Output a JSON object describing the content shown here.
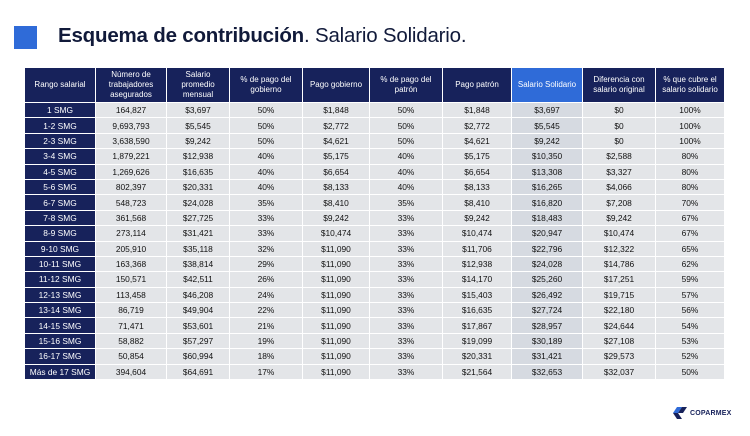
{
  "title": {
    "bold": "Esquema de contribución",
    "light": ". Salario Solidario."
  },
  "headers": [
    "Rango salarial",
    "Número de trabajadores asegurados",
    "Salario promedio mensual",
    "% de pago del gobierno",
    "Pago gobierno",
    "% de pago del patrón",
    "Pago patrón",
    "Salario Solidario",
    "Diferencia con salario original",
    "% que cubre el salario solidario"
  ],
  "rows": [
    [
      "1 SMG",
      "164,827",
      "$3,697",
      "50%",
      "$1,848",
      "50%",
      "$1,848",
      "$3,697",
      "$0",
      "100%"
    ],
    [
      "1-2 SMG",
      "9,693,793",
      "$5,545",
      "50%",
      "$2,772",
      "50%",
      "$2,772",
      "$5,545",
      "$0",
      "100%"
    ],
    [
      "2-3 SMG",
      "3,638,590",
      "$9,242",
      "50%",
      "$4,621",
      "50%",
      "$4,621",
      "$9,242",
      "$0",
      "100%"
    ],
    [
      "3-4 SMG",
      "1,879,221",
      "$12,938",
      "40%",
      "$5,175",
      "40%",
      "$5,175",
      "$10,350",
      "$2,588",
      "80%"
    ],
    [
      "4-5 SMG",
      "1,269,626",
      "$16,635",
      "40%",
      "$6,654",
      "40%",
      "$6,654",
      "$13,308",
      "$3,327",
      "80%"
    ],
    [
      "5-6 SMG",
      "802,397",
      "$20,331",
      "40%",
      "$8,133",
      "40%",
      "$8,133",
      "$16,265",
      "$4,066",
      "80%"
    ],
    [
      "6-7 SMG",
      "548,723",
      "$24,028",
      "35%",
      "$8,410",
      "35%",
      "$8,410",
      "$16,820",
      "$7,208",
      "70%"
    ],
    [
      "7-8 SMG",
      "361,568",
      "$27,725",
      "33%",
      "$9,242",
      "33%",
      "$9,242",
      "$18,483",
      "$9,242",
      "67%"
    ],
    [
      "8-9 SMG",
      "273,114",
      "$31,421",
      "33%",
      "$10,474",
      "33%",
      "$10,474",
      "$20,947",
      "$10,474",
      "67%"
    ],
    [
      "9-10 SMG",
      "205,910",
      "$35,118",
      "32%",
      "$11,090",
      "33%",
      "$11,706",
      "$22,796",
      "$12,322",
      "65%"
    ],
    [
      "10-11 SMG",
      "163,368",
      "$38,814",
      "29%",
      "$11,090",
      "33%",
      "$12,938",
      "$24,028",
      "$14,786",
      "62%"
    ],
    [
      "11-12 SMG",
      "150,571",
      "$42,511",
      "26%",
      "$11,090",
      "33%",
      "$14,170",
      "$25,260",
      "$17,251",
      "59%"
    ],
    [
      "12-13 SMG",
      "113,458",
      "$46,208",
      "24%",
      "$11,090",
      "33%",
      "$15,403",
      "$26,492",
      "$19,715",
      "57%"
    ],
    [
      "13-14 SMG",
      "86,719",
      "$49,904",
      "22%",
      "$11,090",
      "33%",
      "$16,635",
      "$27,724",
      "$22,180",
      "56%"
    ],
    [
      "14-15 SMG",
      "71,471",
      "$53,601",
      "21%",
      "$11,090",
      "33%",
      "$17,867",
      "$28,957",
      "$24,644",
      "54%"
    ],
    [
      "15-16 SMG",
      "58,882",
      "$57,297",
      "19%",
      "$11,090",
      "33%",
      "$19,099",
      "$30,189",
      "$27,108",
      "53%"
    ],
    [
      "16-17 SMG",
      "50,854",
      "$60,994",
      "18%",
      "$11,090",
      "33%",
      "$20,331",
      "$31,421",
      "$29,573",
      "52%"
    ],
    [
      "Más de 17 SMG",
      "394,604",
      "$64,691",
      "17%",
      "$11,090",
      "33%",
      "$21,564",
      "$32,653",
      "$32,037",
      "50%"
    ]
  ],
  "highlight_column": "Salario Solidario",
  "colors": {
    "navy": "#17225b",
    "accent_blue": "#2f6bd8",
    "cell_gray": "#e3e5e8"
  },
  "brand": {
    "name": "COPARMEX",
    "icon": "coparmex-logo-icon"
  }
}
